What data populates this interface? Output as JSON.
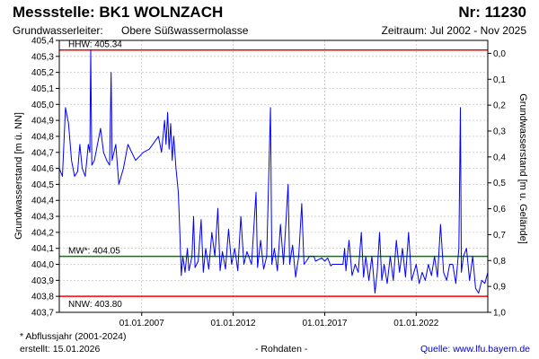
{
  "header": {
    "station": "Messstelle: BK1 WOLNZACH",
    "number": "Nr: 11230",
    "aquifer_label": "Grundwasserleiter:",
    "aquifer_value": "Obere Süßwassermolasse",
    "period": "Zeitraum: Jul 2002 - Nov 2025"
  },
  "footer": {
    "note": "* Abflussjahr (2001-2024)",
    "created": "erstellt:  15.01.2026",
    "raw": "- Rohdaten -",
    "source_label": "Quelle:",
    "source_url": "www.lfu.bayern.de"
  },
  "colors": {
    "series": "#0000ff",
    "hhw": "#ff0000",
    "nnw": "#ff0000",
    "mw": "#008000",
    "grid": "#c8c8c8"
  },
  "chart_data": {
    "type": "line",
    "ylabel_left": "Grundwasserstand [m ü. NN]",
    "ylabel_right": "Grundwasserstand [m u. Gelände]",
    "ylim": [
      403.7,
      405.4
    ],
    "right_ylim": [
      1.0,
      -0.05
    ],
    "xlim": [
      "2002-07-01",
      "2025-11-30"
    ],
    "yticks_left": [
      "405,4",
      "405,3",
      "405,2",
      "405,1",
      "405,0",
      "404,9",
      "404,8",
      "404,7",
      "404,6",
      "404,5",
      "404,4",
      "404,3",
      "404,2",
      "404,1",
      "404,0",
      "403,9",
      "403,8",
      "403,7"
    ],
    "yticks_right": [
      "0,0",
      "0,1",
      "0,2",
      "0,3",
      "0,4",
      "0,5",
      "0,6",
      "0,7",
      "0,8",
      "0,9",
      "1,0"
    ],
    "xticks": [
      {
        "date": "2007-01-01",
        "label": "01.01.2007"
      },
      {
        "date": "2012-01-01",
        "label": "01.01.2012"
      },
      {
        "date": "2017-01-01",
        "label": "01.01.2017"
      },
      {
        "date": "2022-01-01",
        "label": "01.01.2022"
      }
    ],
    "grid": true,
    "reference_lines": [
      {
        "label": "HHW: 405.34",
        "value": 405.34,
        "color": "#ff0000"
      },
      {
        "label": "MW*: 404.05",
        "value": 404.05,
        "color": "#008000"
      },
      {
        "label": "NNW: 403.80",
        "value": 403.8,
        "color": "#ff0000"
      }
    ],
    "series": [
      {
        "points": [
          [
            "2002-07-01",
            404.6
          ],
          [
            "2002-09-01",
            404.55
          ],
          [
            "2002-11-01",
            404.98
          ],
          [
            "2003-01-01",
            404.88
          ],
          [
            "2003-03-01",
            404.65
          ],
          [
            "2003-05-01",
            404.55
          ],
          [
            "2003-07-01",
            404.58
          ],
          [
            "2003-08-15",
            404.75
          ],
          [
            "2003-10-01",
            404.6
          ],
          [
            "2003-12-01",
            404.55
          ],
          [
            "2004-02-01",
            404.75
          ],
          [
            "2004-03-01",
            404.7
          ],
          [
            "2004-03-20",
            405.34
          ],
          [
            "2004-04-10",
            404.62
          ],
          [
            "2004-06-01",
            404.65
          ],
          [
            "2004-08-01",
            404.75
          ],
          [
            "2004-10-01",
            404.85
          ],
          [
            "2004-12-01",
            404.7
          ],
          [
            "2005-02-01",
            404.65
          ],
          [
            "2005-04-01",
            404.62
          ],
          [
            "2005-05-01",
            405.2
          ],
          [
            "2005-05-20",
            404.65
          ],
          [
            "2005-08-01",
            404.75
          ],
          [
            "2005-10-01",
            404.5
          ],
          [
            "2006-01-01",
            404.6
          ],
          [
            "2006-04-01",
            404.75
          ],
          [
            "2006-09-01",
            404.65
          ],
          [
            "2007-02-01",
            404.7
          ],
          [
            "2007-06-01",
            404.72
          ],
          [
            "2007-09-01",
            404.76
          ],
          [
            "2007-12-01",
            404.8
          ],
          [
            "2008-02-01",
            404.7
          ],
          [
            "2008-04-01",
            404.9
          ],
          [
            "2008-05-01",
            404.75
          ],
          [
            "2008-06-01",
            404.95
          ],
          [
            "2008-07-01",
            404.72
          ],
          [
            "2008-08-01",
            404.88
          ],
          [
            "2008-09-01",
            404.65
          ],
          [
            "2008-10-01",
            404.8
          ],
          [
            "2008-11-15",
            404.6
          ],
          [
            "2009-01-01",
            404.45
          ],
          [
            "2009-02-01",
            404.2
          ],
          [
            "2009-03-01",
            403.93
          ],
          [
            "2009-04-01",
            404.05
          ],
          [
            "2009-05-15",
            403.95
          ],
          [
            "2009-07-01",
            404.1
          ],
          [
            "2009-08-01",
            403.96
          ],
          [
            "2009-10-01",
            404.05
          ],
          [
            "2009-11-01",
            404.3
          ],
          [
            "2009-12-01",
            403.98
          ],
          [
            "2010-02-01",
            404.02
          ],
          [
            "2010-04-01",
            404.28
          ],
          [
            "2010-05-15",
            403.95
          ],
          [
            "2010-07-01",
            404.1
          ],
          [
            "2010-09-01",
            403.97
          ],
          [
            "2010-11-01",
            404.2
          ],
          [
            "2011-01-01",
            404.05
          ],
          [
            "2011-03-01",
            404.35
          ],
          [
            "2011-04-15",
            403.96
          ],
          [
            "2011-06-01",
            404.08
          ],
          [
            "2011-08-01",
            403.97
          ],
          [
            "2011-10-01",
            404.22
          ],
          [
            "2011-12-01",
            404.0
          ],
          [
            "2012-02-01",
            404.1
          ],
          [
            "2012-04-01",
            403.96
          ],
          [
            "2012-06-01",
            404.3
          ],
          [
            "2012-08-01",
            404.0
          ],
          [
            "2012-10-01",
            404.08
          ],
          [
            "2013-01-01",
            404.0
          ],
          [
            "2013-04-01",
            404.45
          ],
          [
            "2013-05-01",
            403.98
          ],
          [
            "2013-07-01",
            404.15
          ],
          [
            "2013-09-01",
            403.97
          ],
          [
            "2013-11-01",
            404.05
          ],
          [
            "2014-01-15",
            404.98
          ],
          [
            "2014-02-10",
            404.0
          ],
          [
            "2014-04-01",
            404.1
          ],
          [
            "2014-06-01",
            403.96
          ],
          [
            "2014-08-01",
            404.25
          ],
          [
            "2014-10-01",
            404.0
          ],
          [
            "2015-01-01",
            404.5
          ],
          [
            "2015-02-01",
            404.0
          ],
          [
            "2015-04-01",
            404.12
          ],
          [
            "2015-06-01",
            403.92
          ],
          [
            "2015-08-01",
            404.05
          ],
          [
            "2015-10-01",
            404.38
          ],
          [
            "2015-11-15",
            404.0
          ],
          [
            "2016-01-01",
            404.02
          ],
          [
            "2016-03-01",
            404.05
          ],
          [
            "2016-05-01",
            404.05
          ],
          [
            "2016-06-01",
            404.05
          ],
          [
            "2016-07-01",
            404.02
          ],
          [
            "2016-09-01",
            404.03
          ],
          [
            "2016-11-01",
            404.04
          ],
          [
            "2017-01-01",
            404.02
          ],
          [
            "2017-03-01",
            404.04
          ],
          [
            "2017-05-01",
            403.99
          ],
          [
            "2017-06-01",
            404.0
          ],
          [
            "2018-01-01",
            404.0
          ],
          [
            "2018-02-01",
            404.1
          ],
          [
            "2018-03-01",
            403.96
          ],
          [
            "2018-05-01",
            404.15
          ],
          [
            "2018-07-01",
            403.93
          ],
          [
            "2018-09-01",
            404.0
          ],
          [
            "2018-11-01",
            403.95
          ],
          [
            "2019-01-01",
            404.2
          ],
          [
            "2019-02-15",
            403.92
          ],
          [
            "2019-04-01",
            404.05
          ],
          [
            "2019-06-01",
            403.9
          ],
          [
            "2019-08-01",
            404.05
          ],
          [
            "2019-10-01",
            403.82
          ],
          [
            "2019-11-15",
            403.95
          ],
          [
            "2020-01-01",
            404.2
          ],
          [
            "2020-02-15",
            403.9
          ],
          [
            "2020-04-01",
            404.0
          ],
          [
            "2020-06-01",
            403.88
          ],
          [
            "2020-08-01",
            404.05
          ],
          [
            "2020-10-01",
            403.9
          ],
          [
            "2020-12-01",
            404.15
          ],
          [
            "2021-02-01",
            403.95
          ],
          [
            "2021-04-01",
            404.1
          ],
          [
            "2021-06-01",
            403.92
          ],
          [
            "2021-08-01",
            404.2
          ],
          [
            "2021-10-01",
            403.9
          ],
          [
            "2022-01-01",
            404.0
          ],
          [
            "2022-03-01",
            403.88
          ],
          [
            "2022-05-01",
            403.95
          ],
          [
            "2022-07-01",
            403.9
          ],
          [
            "2022-09-01",
            404.0
          ],
          [
            "2022-11-01",
            403.93
          ],
          [
            "2023-01-01",
            404.05
          ],
          [
            "2023-03-01",
            403.92
          ],
          [
            "2023-05-01",
            404.25
          ],
          [
            "2023-07-01",
            403.95
          ],
          [
            "2023-09-01",
            403.9
          ],
          [
            "2023-11-01",
            404.0
          ],
          [
            "2024-01-01",
            404.0
          ],
          [
            "2024-03-01",
            403.88
          ],
          [
            "2024-05-01",
            404.1
          ],
          [
            "2024-06-01",
            404.98
          ],
          [
            "2024-06-20",
            403.95
          ],
          [
            "2024-08-01",
            404.05
          ],
          [
            "2024-10-01",
            404.1
          ],
          [
            "2024-12-01",
            403.9
          ],
          [
            "2025-02-01",
            404.05
          ],
          [
            "2025-04-01",
            403.85
          ],
          [
            "2025-06-01",
            403.82
          ],
          [
            "2025-08-01",
            403.9
          ],
          [
            "2025-10-01",
            403.88
          ],
          [
            "2025-11-30",
            403.95
          ]
        ]
      }
    ]
  }
}
